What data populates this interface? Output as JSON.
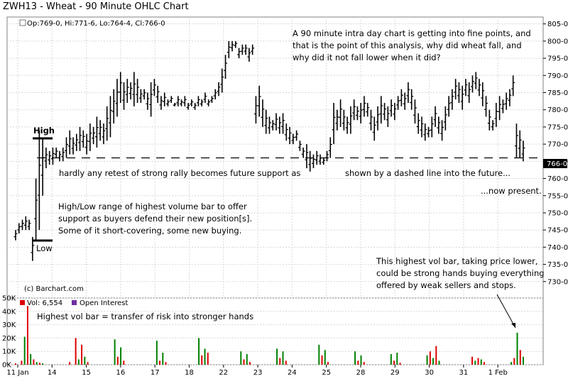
{
  "window_title": "ZWH13 - Wheat - 90 Minute OHLC Chart",
  "header": {
    "ohlc": "Op:769-0, Hi:771-6, Lo:764-4, Cl:766-0",
    "last_price": "766-0",
    "credit": "(c) Barchart.com"
  },
  "volume_legend": {
    "vol_label": "Vol: 6,554",
    "oi_label": "Open Interest",
    "vol_color": "#dd0000",
    "oi_color": "#7030a0"
  },
  "annotations": {
    "top_note": [
      "A 90 minute intra day chart is getting into fine points, and",
      "that is the point of this analysis, why did wheat fall, and",
      "why did it not fall lower when it did?"
    ],
    "high": "High",
    "low": "Low",
    "retest_left": "hardly any retest of strong rally becomes future support as",
    "retest_right": "shown by a dashed line into the future...",
    "now_present": "...now present.",
    "range_note": [
      "High/Low range of highest volume bar to offer",
      "support as buyers defend their new position[s].",
      "Some of it short-covering, some new buying."
    ],
    "vol_note": [
      "This highest vol bar, taking price lower,",
      "could be strong hands buying everything",
      "offered by weak sellers and stops."
    ],
    "transfer_note": "Highest vol bar = transfer of risk into stronger hands"
  },
  "chart_data": [
    {
      "type": "ohlc",
      "title": "ZWH13 - Wheat - 90 Minute OHLC Chart",
      "ylim": [
        725,
        807
      ],
      "y_ticks": [
        "805-0",
        "800-0",
        "795-0",
        "790-0",
        "785-0",
        "780-0",
        "775-0",
        "770-0",
        "765-0",
        "760-0",
        "755-0",
        "750-0",
        "745-0",
        "740-0",
        "735-0",
        "730-0"
      ],
      "x_ticks": [
        "11 Jan",
        "14",
        "15",
        "16",
        "17",
        "18",
        "22",
        "23",
        "24",
        "25",
        "28",
        "29",
        "30",
        "31",
        "1 Feb"
      ],
      "support_level": 766,
      "bars": [
        [
          745,
          742
        ],
        [
          747,
          744
        ],
        [
          748,
          745
        ],
        [
          749,
          745
        ],
        [
          748,
          745
        ],
        [
          743,
          736
        ],
        [
          760,
          742
        ],
        [
          774,
          745
        ],
        [
          772,
          755
        ],
        [
          769,
          763
        ],
        [
          768,
          764
        ],
        [
          769,
          764
        ],
        [
          769,
          766
        ],
        [
          768,
          765
        ],
        [
          769,
          765
        ],
        [
          772,
          766
        ],
        [
          774,
          767
        ],
        [
          772,
          767
        ],
        [
          773,
          768
        ],
        [
          775,
          768
        ],
        [
          774,
          769
        ],
        [
          773,
          767
        ],
        [
          776,
          768
        ],
        [
          775,
          770
        ],
        [
          778,
          769
        ],
        [
          777,
          771
        ],
        [
          776,
          770
        ],
        [
          781,
          771
        ],
        [
          784,
          772
        ],
        [
          786,
          776
        ],
        [
          789,
          778
        ],
        [
          791,
          782
        ],
        [
          788,
          780
        ],
        [
          789,
          782
        ],
        [
          788,
          783
        ],
        [
          791,
          781
        ],
        [
          789,
          782
        ],
        [
          786,
          782
        ],
        [
          786,
          783
        ],
        [
          785,
          780
        ],
        [
          788,
          778
        ],
        [
          789,
          784
        ],
        [
          787,
          782
        ],
        [
          784,
          780
        ],
        [
          785,
          781
        ],
        [
          783,
          781
        ],
        [
          784,
          782
        ],
        [
          782,
          781
        ],
        [
          784,
          781
        ],
        [
          783,
          781
        ],
        [
          784,
          781
        ],
        [
          782,
          780
        ],
        [
          783,
          781
        ],
        [
          782,
          780
        ],
        [
          784,
          781
        ],
        [
          783,
          781
        ],
        [
          785,
          782
        ],
        [
          783,
          781
        ],
        [
          784,
          782
        ],
        [
          786,
          783
        ],
        [
          788,
          784
        ],
        [
          792,
          785
        ],
        [
          796,
          789
        ],
        [
          800,
          795
        ],
        [
          800,
          797
        ],
        [
          800,
          798
        ],
        [
          798,
          795
        ],
        [
          799,
          796
        ],
        [
          799,
          796
        ],
        [
          798,
          794
        ],
        [
          799,
          796
        ],
        [
          784,
          776
        ],
        [
          787,
          778
        ],
        [
          783,
          775
        ],
        [
          780,
          773
        ],
        [
          778,
          773
        ],
        [
          777,
          774
        ],
        [
          779,
          774
        ],
        [
          778,
          773
        ],
        [
          779,
          773
        ],
        [
          776,
          771
        ],
        [
          775,
          770
        ],
        [
          773,
          770
        ],
        [
          774,
          771
        ],
        [
          771,
          768
        ],
        [
          769,
          766
        ],
        [
          770,
          763
        ],
        [
          768,
          762
        ],
        [
          767,
          763
        ],
        [
          768,
          764
        ],
        [
          767,
          764
        ],
        [
          766,
          764
        ],
        [
          768,
          765
        ],
        [
          772,
          766
        ],
        [
          782,
          770
        ],
        [
          780,
          774
        ],
        [
          783,
          775
        ],
        [
          780,
          774
        ],
        [
          778,
          773
        ],
        [
          781,
          773
        ],
        [
          783,
          777
        ],
        [
          781,
          777
        ],
        [
          782,
          776
        ],
        [
          784,
          778
        ],
        [
          782,
          778
        ],
        [
          780,
          774
        ],
        [
          778,
          771
        ],
        [
          781,
          774
        ],
        [
          784,
          776
        ],
        [
          782,
          777
        ],
        [
          781,
          775
        ],
        [
          783,
          778
        ],
        [
          782,
          777
        ],
        [
          784,
          780
        ],
        [
          786,
          781
        ],
        [
          785,
          780
        ],
        [
          788,
          782
        ],
        [
          786,
          780
        ],
        [
          783,
          776
        ],
        [
          779,
          773
        ],
        [
          778,
          772
        ],
        [
          776,
          771
        ],
        [
          775,
          772
        ],
        [
          778,
          772
        ],
        [
          781,
          775
        ],
        [
          778,
          773
        ],
        [
          777,
          771
        ],
        [
          781,
          774
        ],
        [
          784,
          778
        ],
        [
          786,
          780
        ],
        [
          789,
          783
        ],
        [
          788,
          782
        ],
        [
          787,
          780
        ],
        [
          789,
          784
        ],
        [
          788,
          782
        ],
        [
          790,
          785
        ],
        [
          791,
          786
        ],
        [
          789,
          784
        ],
        [
          788,
          781
        ],
        [
          784,
          778
        ],
        [
          780,
          774
        ],
        [
          777,
          774
        ],
        [
          782,
          775
        ],
        [
          784,
          777
        ],
        [
          783,
          779
        ],
        [
          785,
          780
        ],
        [
          786,
          781
        ],
        [
          790,
          784
        ],
        [
          776,
          766
        ],
        [
          774,
          766
        ],
        [
          771,
          765
        ]
      ]
    },
    {
      "type": "bar",
      "title": "Vol",
      "ylim": [
        0,
        50000
      ],
      "y_ticks": [
        "50K",
        "40K",
        "30K",
        "20K",
        "10K",
        "0K"
      ],
      "series": [
        {
          "name": "Vol",
          "values": [
            1000,
            0,
            3000,
            21000,
            44000,
            8000,
            4000,
            2000,
            1500,
            1000,
            0,
            0,
            0,
            0,
            0,
            0,
            0,
            0,
            2000,
            0,
            20000,
            4000,
            15000,
            6000,
            2000,
            0,
            0,
            0,
            0,
            0,
            0,
            0,
            0,
            19000,
            6000,
            13000,
            3000,
            0,
            0,
            0,
            0,
            0,
            0,
            0,
            0,
            0,
            0,
            18000,
            3000,
            9000,
            2000,
            0,
            0,
            0,
            0,
            0,
            0,
            0,
            0,
            0,
            0,
            20000,
            7000,
            12000,
            9000,
            0,
            0,
            0,
            0,
            0,
            0,
            0,
            0,
            0,
            0,
            10000,
            4000,
            8000,
            2000,
            0,
            0,
            0,
            0,
            0,
            0,
            0,
            0,
            12000,
            5000,
            10000,
            3000,
            0,
            0,
            0,
            0,
            0,
            0,
            0,
            0,
            0,
            0,
            15000,
            7000,
            11000,
            2000,
            0,
            0,
            0,
            0,
            0,
            0,
            0,
            0,
            10000,
            3000,
            7000,
            2000,
            0,
            0,
            0,
            0,
            0,
            0,
            0,
            0,
            8000,
            3000,
            9000,
            1500,
            0,
            0,
            0,
            0,
            0,
            0,
            0,
            0,
            7000,
            10000,
            5000,
            14000,
            3000,
            0,
            0,
            0,
            0,
            0,
            0,
            0,
            0,
            0,
            0,
            6000,
            3000,
            5000,
            4000,
            2000,
            0,
            0,
            0,
            0,
            0,
            0,
            0,
            0,
            2000,
            5000,
            24000,
            11000,
            6000
          ]
        }
      ]
    }
  ]
}
